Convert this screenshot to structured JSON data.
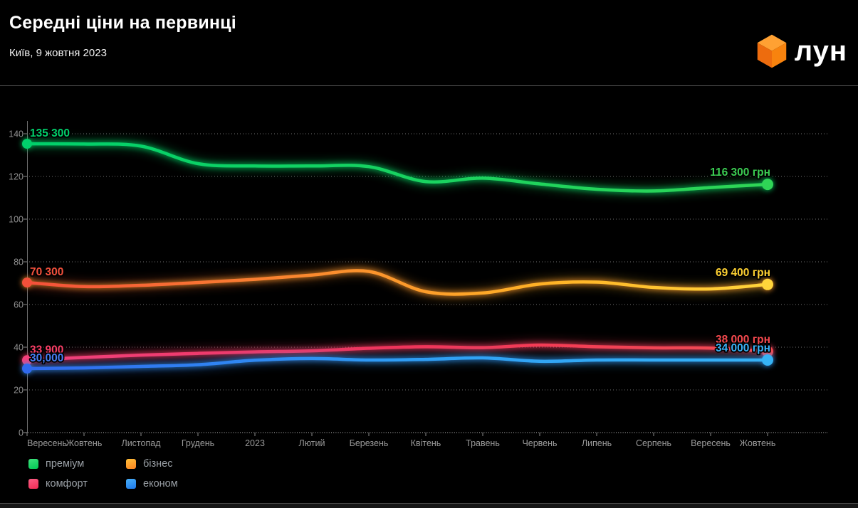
{
  "header": {
    "title": "Середні ціни на первинці",
    "subtitle": "Київ, 9 жовтня 2023",
    "brand": "лун",
    "brand_cube_colors": {
      "top": "#ffa133",
      "left": "#ed6c0e",
      "right": "#f8830e"
    }
  },
  "chart_data": {
    "type": "line",
    "title": "Середні ціни на первинці",
    "subtitle": "Київ, 9 жовтня 2023",
    "categories": [
      "Вересень",
      "Жовтень",
      "Листопад",
      "Грудень",
      "2023",
      "Лютий",
      "Березень",
      "Квітень",
      "Травень",
      "Червень",
      "Липень",
      "Серпень",
      "Вересень",
      "Жовтень"
    ],
    "y_ticks": [
      0,
      20,
      40,
      60,
      80,
      100,
      120,
      140
    ],
    "ylim": [
      0,
      148
    ],
    "y_tick_unit": "тис. грн",
    "grid": "horizontal dotted",
    "legend_position": "bottom-left",
    "series": [
      {
        "name": "преміум",
        "values": [
          135.3,
          135.2,
          134.2,
          126.0,
          124.9,
          124.9,
          124.6,
          117.6,
          119.2,
          116.5,
          114.0,
          113.2,
          114.8,
          116.3
        ],
        "start_label": "135 300",
        "end_label": "116 300 грн",
        "start_label_color": "#00d06b",
        "end_label_color": "#3bcd52",
        "glow": "#00c85f",
        "gradient": [
          [
            "0%",
            "#00d06b"
          ],
          [
            "100%",
            "#2fd556"
          ]
        ]
      },
      {
        "name": "бізнес",
        "values": [
          70.3,
          68.4,
          69.0,
          70.3,
          71.8,
          73.8,
          75.5,
          66.0,
          65.4,
          69.6,
          70.5,
          68.0,
          67.3,
          69.4
        ],
        "start_label": "70 300",
        "end_label": "69 400 грн",
        "start_label_color": "#f4513d",
        "end_label_color": "#ffd232",
        "glow": "#fb962a",
        "gradient": [
          [
            "0%",
            "#f4503a"
          ],
          [
            "40%",
            "#fb8c2e"
          ],
          [
            "70%",
            "#ffb226"
          ],
          [
            "100%",
            "#ffd43b"
          ]
        ]
      },
      {
        "name": "комфорт",
        "values": [
          33.9,
          35.2,
          36.3,
          37.1,
          37.8,
          38.3,
          39.5,
          40.2,
          39.8,
          41.0,
          40.2,
          39.7,
          39.6,
          38.0
        ],
        "start_label": "33 900",
        "end_label": "38 000 грн",
        "start_label_color": "#fb3f67",
        "end_label_color": "#f5494e",
        "glow": "#f23a5e",
        "gradient": [
          [
            "0%",
            "#f6407a"
          ],
          [
            "50%",
            "#f23359"
          ],
          [
            "100%",
            "#f54a4f"
          ]
        ]
      },
      {
        "name": "економ",
        "values": [
          30.0,
          30.3,
          31.0,
          31.8,
          33.9,
          34.7,
          34.0,
          34.3,
          35.0,
          33.4,
          34.0,
          34.0,
          34.0,
          34.0
        ],
        "start_label": "30,000",
        "end_label": "34 000 грн",
        "start_label_color": "#477ef3",
        "end_label_color": "#3ab2f7",
        "glow": "#2f93f2",
        "gradient": [
          [
            "0%",
            "#3069ee"
          ],
          [
            "50%",
            "#2f9df5"
          ],
          [
            "100%",
            "#36b3f5"
          ]
        ]
      }
    ]
  },
  "legend": {
    "items": [
      {
        "label": "преміум",
        "swatch": [
          "#40e07d",
          "#00c853"
        ]
      },
      {
        "label": "бізнес",
        "swatch": [
          "#ffc03a",
          "#fb8220"
        ]
      },
      {
        "label": "комфорт",
        "swatch": [
          "#fa5f85",
          "#f22a54"
        ]
      },
      {
        "label": "економ",
        "swatch": [
          "#4ab0f7",
          "#1d78ea"
        ]
      }
    ]
  }
}
